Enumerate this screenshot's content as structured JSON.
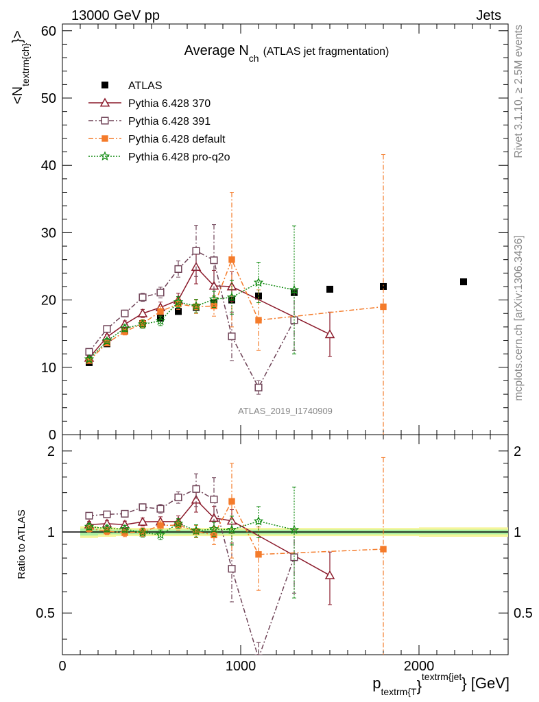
{
  "header": {
    "left": "13000 GeV pp",
    "right": "Jets"
  },
  "side_labels": {
    "rivet": "Rivet 3.1.10, ≥ 2.5M events",
    "mcplots": "mcplots.cern.ch [arXiv:1306.3436]"
  },
  "analysis_id": "ATLAS_2019_I1740909",
  "chart_data": {
    "type": "scatter",
    "title_main": "Average N",
    "title_sub": "ch",
    "title_rest": "(ATLAS jet fragmentation)",
    "ylabel_main": "<N",
    "ylabel_sub": "textrm{ch}",
    "ylabel_end": "}>",
    "ratio_ylabel": "Ratio to ATLAS",
    "xlabel_main": "p",
    "xlabel_sub": "textrm{T",
    "xlabel_mid": "}",
    "xlabel_sup": "textrm{jet",
    "xlabel_end": "} [GeV]",
    "xlim": [
      0,
      2500
    ],
    "ylim": [
      0,
      61
    ],
    "ratio_ylim": [
      0.35,
      2.3
    ],
    "ratio_scale": "log",
    "xticks": [
      0,
      1000,
      2000
    ],
    "xtick_labels": [
      "0",
      "1000",
      "2000"
    ],
    "yticks": [
      0,
      10,
      20,
      30,
      40,
      50,
      60
    ],
    "ytick_labels": [
      "0",
      "10",
      "20",
      "30",
      "40",
      "50",
      "60"
    ],
    "ratio_yticks": [
      0.5,
      1,
      2
    ],
    "ratio_ytick_labels": [
      "0.5",
      "1",
      "2"
    ],
    "legend_position": "top-left",
    "data": {
      "name": "ATLAS",
      "color": "#000000",
      "x": [
        150,
        250,
        350,
        450,
        550,
        650,
        750,
        850,
        950,
        1100,
        1300,
        1500,
        1800,
        2250
      ],
      "y": [
        10.7,
        13.5,
        15.4,
        16.5,
        17.3,
        18.3,
        18.9,
        19.6,
        20.0,
        20.6,
        21.1,
        21.6,
        22.0,
        22.7
      ],
      "band_x": [
        100,
        200,
        300,
        400,
        500,
        600,
        700,
        800,
        900,
        1000,
        1200,
        1400,
        1600,
        2000,
        2500
      ],
      "band_inner": [
        0.03,
        0.02,
        0.02,
        0.02,
        0.02,
        0.02,
        0.02,
        0.02,
        0.02,
        0.02,
        0.02,
        0.02,
        0.02,
        0.02
      ],
      "band_outer": [
        0.05,
        0.04,
        0.035,
        0.035,
        0.035,
        0.035,
        0.035,
        0.035,
        0.035,
        0.035,
        0.035,
        0.035,
        0.035,
        0.04
      ]
    },
    "series": [
      {
        "name": "Pythia 6.428 370",
        "color": "#8b1a2b",
        "marker": "triangle",
        "dash": "",
        "x": [
          150,
          250,
          350,
          450,
          550,
          650,
          750,
          850,
          950,
          1500
        ],
        "y": [
          11.4,
          14.5,
          16.4,
          18.0,
          18.9,
          20.0,
          24.9,
          22.1,
          22.0,
          14.9
        ],
        "err": [
          0.3,
          0.4,
          0.5,
          0.6,
          0.8,
          1.0,
          2.5,
          2.3,
          2.2,
          3.3
        ]
      },
      {
        "name": "Pythia 6.428 391",
        "color": "#6e4256",
        "marker": "square-open",
        "dash": "7,3,2,3",
        "x": [
          150,
          250,
          350,
          450,
          550,
          650,
          750,
          850,
          950,
          1100,
          1300
        ],
        "y": [
          12.3,
          15.7,
          18.0,
          20.4,
          21.1,
          24.6,
          27.3,
          25.9,
          14.6,
          7.0,
          17.0
        ],
        "err": [
          0.3,
          0.4,
          0.5,
          0.6,
          0.8,
          1.2,
          3.8,
          5.3,
          3.6,
          1.0,
          4.5
        ]
      },
      {
        "name": "Pythia 6.428 default",
        "color": "#f47b2a",
        "marker": "square-filled",
        "dash": "7,3,2,3",
        "x": [
          150,
          250,
          350,
          450,
          550,
          650,
          750,
          850,
          950,
          1100,
          1800
        ],
        "y": [
          11.0,
          13.6,
          15.3,
          16.5,
          18.3,
          19.4,
          19.0,
          19.1,
          26.0,
          17.0,
          19.0
        ],
        "err": [
          0.3,
          0.4,
          0.5,
          0.6,
          0.7,
          0.8,
          1.0,
          1.5,
          10.0,
          4.5,
          22.6
        ]
      },
      {
        "name": "Pythia 6.428 pro-q2o",
        "color": "#118a11",
        "marker": "star",
        "dash": "2,2",
        "x": [
          150,
          250,
          350,
          450,
          550,
          650,
          750,
          850,
          950,
          1100,
          1300
        ],
        "y": [
          11.2,
          13.9,
          15.8,
          16.4,
          16.9,
          19.7,
          19.1,
          20.1,
          20.4,
          22.6,
          21.5
        ],
        "err": [
          0.3,
          0.4,
          0.5,
          0.6,
          0.7,
          0.8,
          1.0,
          1.2,
          2.5,
          3.0,
          9.5
        ]
      }
    ]
  }
}
